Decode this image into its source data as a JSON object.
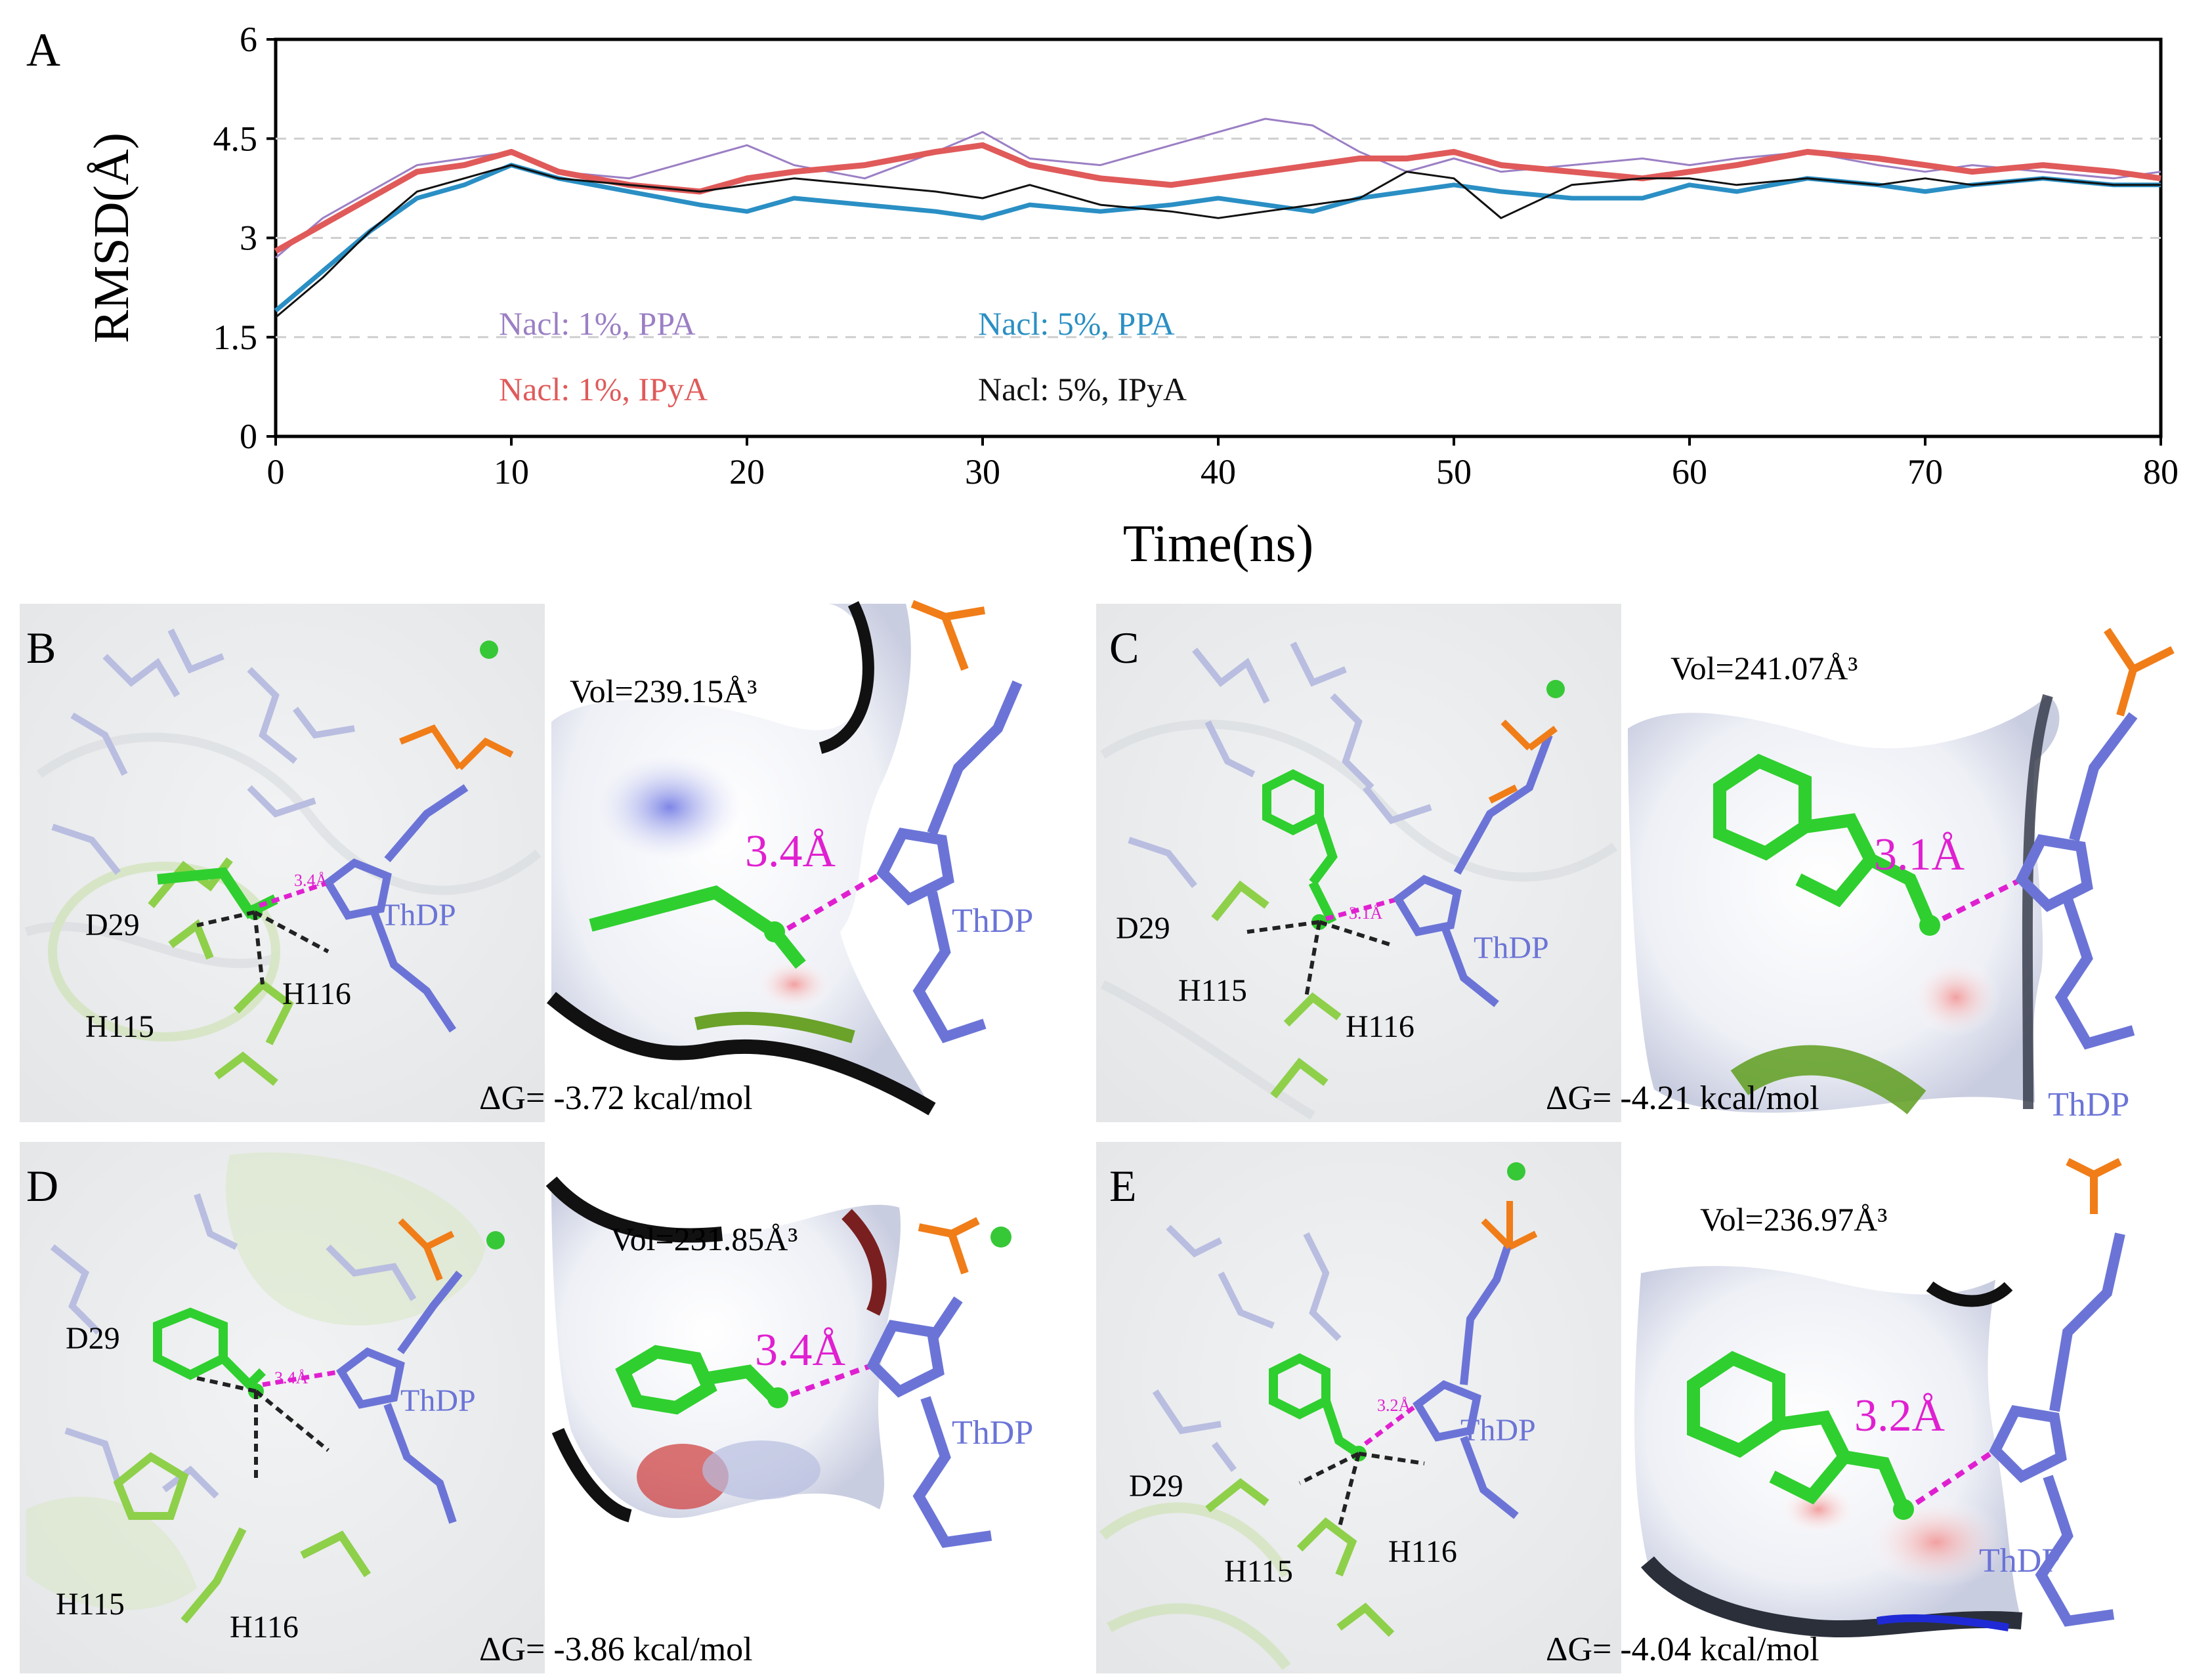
{
  "figure": {
    "panels": {
      "A": {
        "letter": "A"
      },
      "B": {
        "letter": "B",
        "distance_left": "3.4Å",
        "distance_right": "3.4Å",
        "residues": {
          "d29": "D29",
          "h115": "H115",
          "h116": "H116"
        },
        "thdp_left": "ThDP",
        "thdp_right": "ThDP",
        "volume": "Vol=239.15Å³",
        "delta_g": "ΔG= -3.72 kcal/mol"
      },
      "C": {
        "letter": "C",
        "distance_left": "3.1Å",
        "distance_right": "3.1Å",
        "residues": {
          "d29": "D29",
          "h115": "H115",
          "h116": "H116"
        },
        "thdp_left": "ThDP",
        "thdp_right": "ThDP",
        "volume": "Vol=241.07Å³",
        "delta_g": "ΔG= -4.21 kcal/mol"
      },
      "D": {
        "letter": "D",
        "distance_left": "3.4Å",
        "distance_right": "3.4Å",
        "residues": {
          "d29": "D29",
          "h115": "H115",
          "h116": "H116"
        },
        "thdp_left": "ThDP",
        "thdp_right": "ThDP",
        "volume": "Vol=231.85Å³",
        "delta_g": "ΔG= -3.86 kcal/mol"
      },
      "E": {
        "letter": "E",
        "distance_left": "3.2Å",
        "distance_right": "3.2Å",
        "residues": {
          "d29": "D29",
          "h115": "H115",
          "h116": "H116"
        },
        "thdp_left": "ThDP",
        "thdp_right": "ThDP",
        "volume": "Vol=236.97Å³",
        "delta_g": "ΔG= -4.04 kcal/mol"
      }
    },
    "colors": {
      "series_1pct_ppa": "#9b7fc4",
      "series_5pct_ppa": "#2a8fc4",
      "series_1pct_ipya": "#e05a5a",
      "series_5pct_ipya": "#111111",
      "ligand_green": "#2fcf2f",
      "thdp_blue": "#6b74d6",
      "distance_magenta": "#e020d0"
    }
  },
  "chart_data": {
    "type": "line",
    "title": "",
    "xlabel": "Time(ns)",
    "ylabel": "RMSD(Å)",
    "xlim": [
      0,
      80
    ],
    "ylim": [
      0,
      6
    ],
    "x_ticks": [
      "0",
      "10",
      "20",
      "30",
      "40",
      "50",
      "60",
      "70",
      "80"
    ],
    "y_ticks": [
      "0",
      "1.5",
      "3",
      "4.5",
      "6"
    ],
    "grid": "horizontal dashed at 1.5, 3, 4.5",
    "legend_placement": "inside lower-left",
    "series": [
      {
        "name": "Nacl: 1%, PPA",
        "color": "#9b7fc4",
        "x": [
          0,
          2,
          4,
          6,
          8,
          10,
          12,
          15,
          18,
          20,
          22,
          25,
          28,
          30,
          32,
          35,
          38,
          40,
          42,
          44,
          46,
          48,
          50,
          52,
          55,
          58,
          60,
          62,
          65,
          68,
          70,
          72,
          75,
          78,
          80
        ],
        "y": [
          2.7,
          3.3,
          3.7,
          4.1,
          4.2,
          4.3,
          4.0,
          3.9,
          4.2,
          4.4,
          4.1,
          3.9,
          4.3,
          4.6,
          4.2,
          4.1,
          4.4,
          4.6,
          4.8,
          4.7,
          4.3,
          4.0,
          4.2,
          4.0,
          4.1,
          4.2,
          4.1,
          4.2,
          4.3,
          4.1,
          4.0,
          4.1,
          4.0,
          3.9,
          4.0
        ]
      },
      {
        "name": "Nacl: 5%, PPA",
        "color": "#2a8fc4",
        "x": [
          0,
          2,
          4,
          6,
          8,
          10,
          12,
          15,
          18,
          20,
          22,
          25,
          28,
          30,
          32,
          35,
          38,
          40,
          42,
          44,
          46,
          48,
          50,
          52,
          55,
          58,
          60,
          62,
          65,
          68,
          70,
          72,
          75,
          78,
          80
        ],
        "y": [
          1.9,
          2.5,
          3.1,
          3.6,
          3.8,
          4.1,
          3.9,
          3.7,
          3.5,
          3.4,
          3.6,
          3.5,
          3.4,
          3.3,
          3.5,
          3.4,
          3.5,
          3.6,
          3.5,
          3.4,
          3.6,
          3.7,
          3.8,
          3.7,
          3.6,
          3.6,
          3.8,
          3.7,
          3.9,
          3.8,
          3.7,
          3.8,
          3.9,
          3.8,
          3.8
        ]
      },
      {
        "name": "Nacl: 1%, IPyA",
        "color": "#e05a5a",
        "x": [
          0,
          2,
          4,
          6,
          8,
          10,
          12,
          15,
          18,
          20,
          22,
          25,
          28,
          30,
          32,
          35,
          38,
          40,
          42,
          44,
          46,
          48,
          50,
          52,
          55,
          58,
          60,
          62,
          65,
          68,
          70,
          72,
          75,
          78,
          80
        ],
        "y": [
          2.8,
          3.2,
          3.6,
          4.0,
          4.1,
          4.3,
          4.0,
          3.8,
          3.7,
          3.9,
          4.0,
          4.1,
          4.3,
          4.4,
          4.1,
          3.9,
          3.8,
          3.9,
          4.0,
          4.1,
          4.2,
          4.2,
          4.3,
          4.1,
          4.0,
          3.9,
          4.0,
          4.1,
          4.3,
          4.2,
          4.1,
          4.0,
          4.1,
          4.0,
          3.9
        ]
      },
      {
        "name": "Nacl: 5%, IPyA",
        "color": "#111111",
        "x": [
          0,
          2,
          4,
          6,
          8,
          10,
          12,
          15,
          18,
          20,
          22,
          25,
          28,
          30,
          32,
          35,
          38,
          40,
          42,
          44,
          46,
          48,
          50,
          52,
          55,
          58,
          60,
          62,
          65,
          68,
          70,
          72,
          75,
          78,
          80
        ],
        "y": [
          1.8,
          2.4,
          3.1,
          3.7,
          3.9,
          4.1,
          3.9,
          3.8,
          3.7,
          3.8,
          3.9,
          3.8,
          3.7,
          3.6,
          3.8,
          3.5,
          3.4,
          3.3,
          3.4,
          3.5,
          3.6,
          4.0,
          3.9,
          3.3,
          3.8,
          3.9,
          3.9,
          3.8,
          3.9,
          3.8,
          3.9,
          3.8,
          3.9,
          3.8,
          3.8
        ]
      }
    ]
  }
}
